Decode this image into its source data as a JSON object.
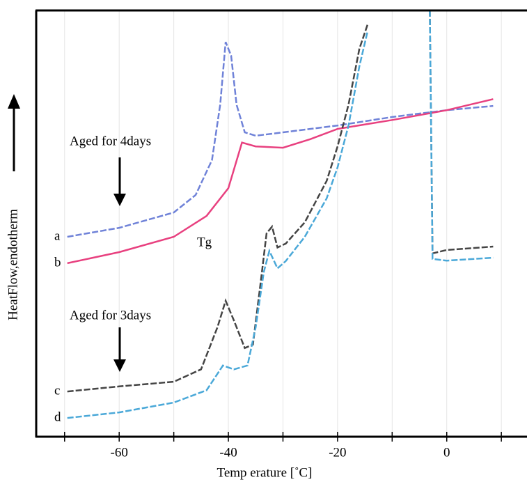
{
  "chart_data": {
    "type": "line",
    "x_label": "Temp erature [˚C]",
    "y_label": "HeatFlow,endotherm",
    "annotations": [
      "Aged for 4days",
      "Aged for 3days",
      "Tg"
    ],
    "xlim": [
      -75.2,
      14.7
    ],
    "ylim": [
      0,
      100
    ],
    "xticks": [
      -60,
      -40,
      -20,
      0
    ],
    "xminorticks": [
      -70,
      -50,
      -30,
      -10,
      10
    ],
    "grid": true,
    "series": [
      {
        "name": "a",
        "color": "#6f82d8",
        "dashed": true,
        "x": [
          -69.5,
          -60,
          -50,
          -46,
          -43,
          -41.5,
          -40.5,
          -39.5,
          -38.5,
          -37,
          -35,
          -30,
          -20,
          -10,
          0,
          8.5
        ],
        "values": [
          46.9,
          49.0,
          52.6,
          56.7,
          64.9,
          77.9,
          92.6,
          89.4,
          77.9,
          71.4,
          70.6,
          71.4,
          73.0,
          75.0,
          76.6,
          77.6
        ]
      },
      {
        "name": "b",
        "color": "#e8407f",
        "dashed": false,
        "x": [
          -69.5,
          -60,
          -50,
          -44,
          -40,
          -37.5,
          -35,
          -30,
          -25,
          -20,
          -10,
          0,
          8.5
        ],
        "values": [
          40.7,
          43.3,
          46.9,
          51.8,
          58.3,
          69.0,
          68.1,
          67.8,
          69.8,
          72.2,
          74.3,
          76.6,
          79.2
        ]
      },
      {
        "name": "c",
        "color": "#444444",
        "dashed": true,
        "x": [
          -69.5,
          -60,
          -50,
          -45,
          -42,
          -40.5,
          -39,
          -37,
          -35.5,
          -34,
          -33,
          -32,
          -31,
          -29.5,
          -26,
          -22,
          -20,
          -18,
          -16,
          -14.5,
          null,
          -3.1,
          -2.6,
          0,
          8.5
        ],
        "values": [
          10.6,
          11.8,
          12.9,
          15.8,
          25.7,
          31.9,
          27.3,
          20.8,
          21.6,
          37.1,
          47.7,
          49.3,
          44.4,
          45.3,
          50.3,
          60.0,
          68.1,
          77.9,
          91.0,
          96.7,
          null,
          100,
          43.0,
          43.8,
          44.6
        ]
      },
      {
        "name": "d",
        "color": "#4aa8d8",
        "dashed": true,
        "x": [
          -69.5,
          -60,
          -50,
          -44,
          -41,
          -39,
          -36.5,
          -35,
          -33.5,
          -32.5,
          -31,
          -29.5,
          -26,
          -22,
          -20,
          -18,
          -16,
          -14.5,
          null,
          -3.1,
          -2.6,
          0,
          8.5
        ],
        "values": [
          4.4,
          5.7,
          8.0,
          10.9,
          16.7,
          15.8,
          16.7,
          25.7,
          38.7,
          43.6,
          39.5,
          41.2,
          46.9,
          55.9,
          63.2,
          73.0,
          86.9,
          95.1,
          null,
          100,
          41.7,
          41.3,
          42.0
        ]
      }
    ]
  }
}
